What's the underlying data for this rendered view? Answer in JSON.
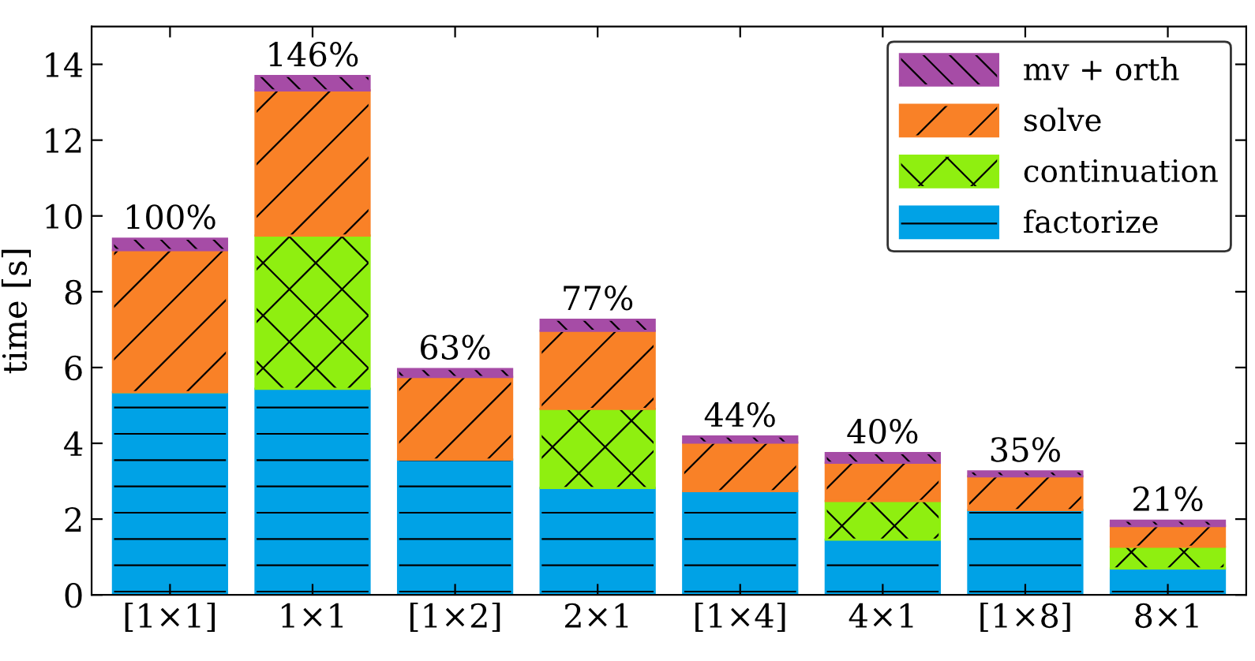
{
  "chart_data": {
    "type": "bar",
    "stacked": true,
    "ylabel": "time [s]",
    "categories": [
      "[1×1]",
      "1×1",
      "[1×2]",
      "2×1",
      "[1×4]",
      "4×1",
      "[1×8]",
      "8×1"
    ],
    "series": [
      {
        "name": "factorize",
        "color": "#00a2e6",
        "values": [
          5.35,
          5.44,
          3.57,
          2.82,
          2.74,
          1.46,
          2.24,
          0.7
        ]
      },
      {
        "name": "continuation",
        "color": "#8fef10",
        "values": [
          0,
          4.04,
          0,
          2.09,
          0,
          1.02,
          0,
          0.57
        ]
      },
      {
        "name": "solve",
        "color": "#f98127",
        "values": [
          3.75,
          3.83,
          2.18,
          2.06,
          1.28,
          1.01,
          0.89,
          0.55
        ]
      },
      {
        "name": "mv + orth",
        "color": "#a64ca6",
        "values": [
          0.3,
          0.38,
          0.21,
          0.29,
          0.16,
          0.25,
          0.13,
          0.14
        ]
      }
    ],
    "annotations": [
      {
        "text": "100%",
        "x": "[1×1]",
        "y": 9.4
      },
      {
        "text": "146%",
        "x": "1×1",
        "y": 13.69
      },
      {
        "text": "63%",
        "x": "[1×2]",
        "y": 5.96
      },
      {
        "text": "77%",
        "x": "2×1",
        "y": 7.26
      },
      {
        "text": "44%",
        "x": "[1×4]",
        "y": 4.18
      },
      {
        "text": "40%",
        "x": "4×1",
        "y": 3.74
      },
      {
        "text": "35%",
        "x": "[1×8]",
        "y": 3.26
      },
      {
        "text": "21%",
        "x": "8×1",
        "y": 1.96
      }
    ],
    "ylim": [
      0,
      15
    ],
    "yticks": [
      0,
      2,
      4,
      6,
      8,
      10,
      12,
      14
    ],
    "grid": false,
    "legend": "top right"
  }
}
